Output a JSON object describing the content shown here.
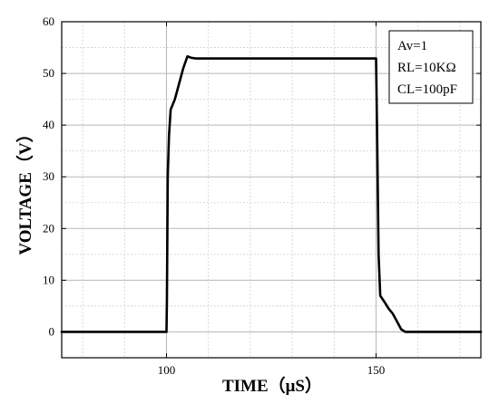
{
  "chart_data": {
    "type": "line",
    "xlabel": "TIME（μS）",
    "ylabel": "VOLTAGE（V）",
    "xlim": [
      75,
      175
    ],
    "ylim": [
      -5,
      60
    ],
    "x_ticks": [
      100,
      150
    ],
    "y_ticks": [
      0,
      10,
      20,
      30,
      40,
      50,
      60
    ],
    "grid": true,
    "legend_position": "top-right",
    "annotations": [
      "Av=1",
      "RL=10KΩ",
      "CL=100pF"
    ],
    "series": [
      {
        "x": [
          75,
          100,
          100.1,
          100.3,
          100.6,
          101,
          102,
          103,
          104,
          105,
          106,
          107,
          120,
          135,
          150,
          150.3,
          150.6,
          151,
          152,
          153,
          154,
          155,
          156,
          157,
          160,
          175
        ],
        "y": [
          0,
          0,
          6,
          30,
          38,
          43,
          45,
          48,
          51,
          53.3,
          53,
          52.9,
          52.9,
          52.9,
          52.9,
          35,
          15,
          7,
          5.8,
          4.5,
          3.5,
          2,
          0.5,
          0,
          0,
          0
        ]
      }
    ],
    "colors": {
      "line": "#000000",
      "major_grid": "#b8b8b8",
      "minor_grid": "#d0d0d0"
    }
  }
}
